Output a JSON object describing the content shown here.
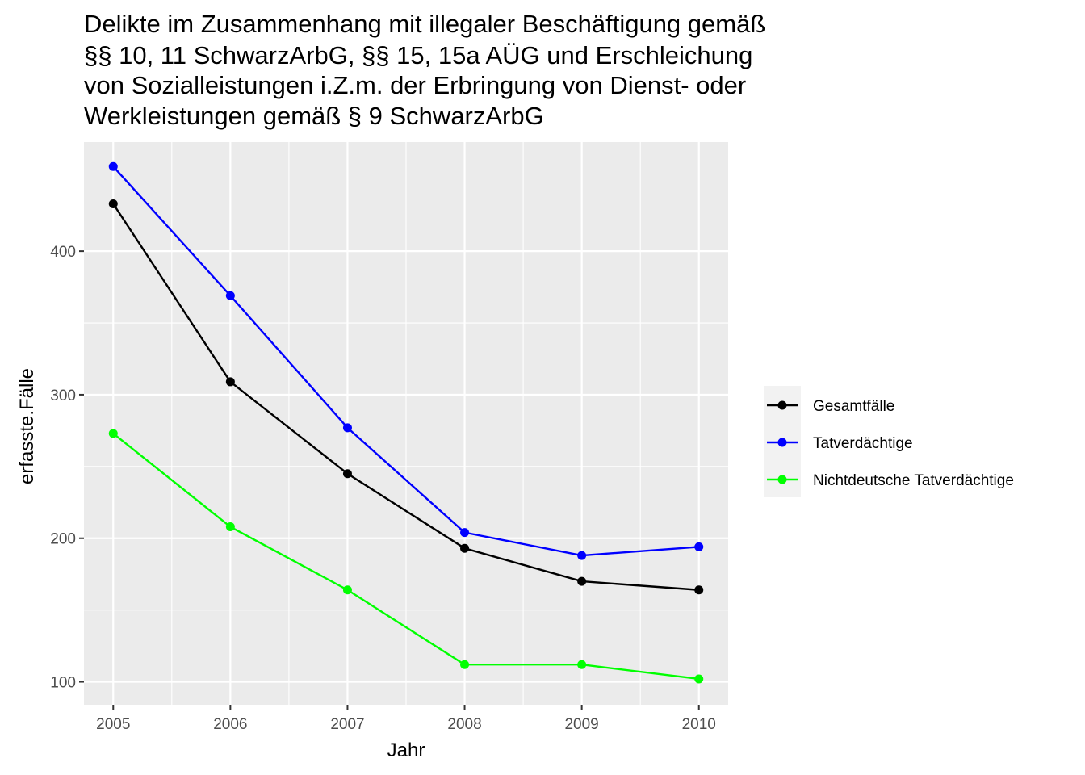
{
  "chart_data": {
    "type": "line",
    "title": "Delikte im Zusammenhang mit illegaler Beschäftigung gemäß §§ 10, 11 SchwarzArbG, §§ 15, 15a AÜG und Erschleichung von Sozialleistungen i.Z.m. der Erbringung von Dienst- oder Werkleistungen gemäß § 9 SchwarzArbG",
    "title_lines": [
      "Delikte im Zusammenhang mit illegaler Beschäftigung gemäß",
      "§§ 10, 11 SchwarzArbG, §§ 15, 15a AÜG und Erschleichung",
      "von Sozialleistungen i.Z.m. der Erbringung von Dienst- oder",
      "Werkleistungen gemäß § 9 SchwarzArbG"
    ],
    "xlabel": "Jahr",
    "ylabel": "erfasste.Fälle",
    "x": [
      2005,
      2006,
      2007,
      2008,
      2009,
      2010
    ],
    "x_tick_labels": [
      "2005",
      "2006",
      "2007",
      "2008",
      "2009",
      "2010"
    ],
    "y_ticks": [
      100,
      200,
      300,
      400
    ],
    "y_tick_labels": [
      "100",
      "200",
      "300",
      "400"
    ],
    "xlim": [
      2004.75,
      2010.25
    ],
    "ylim": [
      84,
      476
    ],
    "grid": true,
    "legend_position": "right",
    "series": [
      {
        "name": "Gesamtfälle",
        "color": "#000000",
        "values": [
          433,
          309,
          245,
          193,
          170,
          164
        ]
      },
      {
        "name": "Tatverdächtige",
        "color": "#0000ff",
        "values": [
          459,
          369,
          277,
          204,
          188,
          194
        ]
      },
      {
        "name": "Nichtdeutsche Tatverdächtige",
        "color": "#00ff00",
        "values": [
          273,
          208,
          164,
          112,
          112,
          102
        ]
      }
    ],
    "colors": {
      "panel_background": "#ebebeb",
      "grid": "#ffffff",
      "legend_background": "#f2f2f2"
    }
  }
}
